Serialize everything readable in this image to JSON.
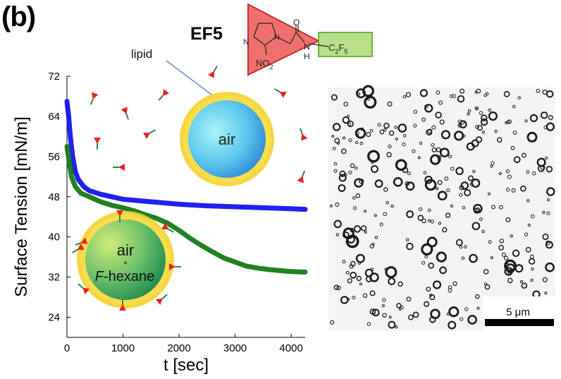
{
  "panel": {
    "label": "(b)"
  },
  "molecule": {
    "name": "EF5",
    "atoms": {
      "n_ring": "N",
      "n_ring2": "N",
      "no2": "NO",
      "no2_sub": "2",
      "carbonyl_o": "O",
      "amide_n": "N",
      "amide_h": "H",
      "fluoro": "C",
      "fluoro_sub1": "2",
      "fluoro_f": "F",
      "fluoro_sub2": "5"
    },
    "colors": {
      "triangle": "#f07070",
      "box": "#b8e08a",
      "box_border": "#6cb33e"
    }
  },
  "annotations": {
    "lipid_label": "lipid",
    "bubble_air": "air",
    "bubble2_air": "air",
    "bubble2_plus": "+",
    "bubble2_f": "F",
    "bubble2_hexane": "-hexane"
  },
  "micrograph": {
    "scale_label": "5 μm"
  },
  "colors": {
    "blue_series": "#1414ee",
    "green_series": "#157a15",
    "lipid_shell": "#f2d43a",
    "molecule_marker": "#e8241e",
    "molecule_tail": "#2a8a44"
  },
  "chart_data": {
    "type": "line",
    "xlabel": "t [sec]",
    "ylabel": "Surface Tension [mN/m]",
    "xlim": [
      0,
      4250
    ],
    "ylim": [
      20,
      72
    ],
    "xticks": [
      0,
      1000,
      2000,
      3000,
      4000
    ],
    "yticks": [
      24,
      32,
      40,
      48,
      56,
      64,
      72
    ],
    "grid": false,
    "series": [
      {
        "color": "#1414ee",
        "points": [
          [
            0,
            67
          ],
          [
            30,
            64
          ],
          [
            60,
            60
          ],
          [
            100,
            56
          ],
          [
            150,
            53
          ],
          [
            200,
            51.5
          ],
          [
            300,
            50
          ],
          [
            400,
            49.2
          ],
          [
            600,
            48.5
          ],
          [
            800,
            48
          ],
          [
            1000,
            47.5
          ],
          [
            1500,
            47
          ],
          [
            2000,
            46.5
          ],
          [
            2500,
            46.2
          ],
          [
            3000,
            46
          ],
          [
            3500,
            45.8
          ],
          [
            4000,
            45.6
          ],
          [
            4250,
            45.5
          ]
        ]
      },
      {
        "color": "#157a15",
        "points": [
          [
            0,
            58
          ],
          [
            40,
            55
          ],
          [
            80,
            52
          ],
          [
            150,
            50
          ],
          [
            250,
            48.7
          ],
          [
            400,
            48
          ],
          [
            600,
            47
          ],
          [
            800,
            46.3
          ],
          [
            1000,
            45.8
          ],
          [
            1200,
            45.2
          ],
          [
            1400,
            44.4
          ],
          [
            1600,
            43.7
          ],
          [
            1800,
            42.7
          ],
          [
            2000,
            41.3
          ],
          [
            2200,
            39.7
          ],
          [
            2400,
            38.3
          ],
          [
            2600,
            37
          ],
          [
            2800,
            35.8
          ],
          [
            3000,
            35
          ],
          [
            3200,
            34.2
          ],
          [
            3400,
            33.8
          ],
          [
            3600,
            33.5
          ],
          [
            3800,
            33.3
          ],
          [
            4000,
            33.1
          ],
          [
            4250,
            33
          ]
        ]
      }
    ]
  }
}
